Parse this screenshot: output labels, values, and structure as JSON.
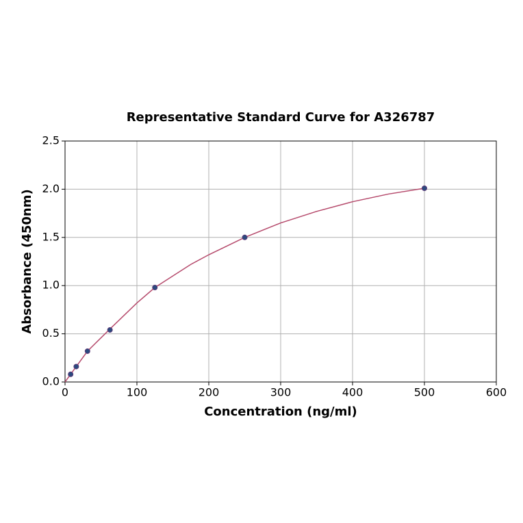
{
  "chart_data": {
    "type": "scatter",
    "title": "Representative Standard Curve for A326787",
    "x_label": "Concentration (ng/ml)",
    "y_label": "Absorbance (450nm)",
    "points": {
      "color": "#2b4a7e",
      "x": [
        7.8,
        15.6,
        31.25,
        62.5,
        125,
        250,
        500
      ],
      "values": [
        0.08,
        0.16,
        0.32,
        0.54,
        0.98,
        1.5,
        2.01
      ]
    },
    "curve": {
      "color": "#b5496b",
      "x": [
        0,
        7.8,
        15.6,
        31.25,
        62.5,
        100,
        125,
        175,
        200,
        250,
        300,
        350,
        400,
        450,
        500
      ],
      "values": [
        0.0,
        0.08,
        0.16,
        0.32,
        0.55,
        0.82,
        0.98,
        1.22,
        1.32,
        1.5,
        1.65,
        1.77,
        1.87,
        1.95,
        2.01
      ]
    },
    "xlim": [
      0,
      600
    ],
    "xticks": [
      0,
      100,
      200,
      300,
      400,
      500,
      600
    ],
    "ylim": [
      0,
      2.5
    ],
    "yticks": [
      {
        "value": 0,
        "label": "0.0"
      },
      {
        "value": 0.5,
        "label": "0.5"
      },
      {
        "value": 1,
        "label": "1.0"
      },
      {
        "value": 1.5,
        "label": "1.5"
      },
      {
        "value": 2,
        "label": "2.0"
      },
      {
        "value": 2.5,
        "label": "2.5"
      }
    ],
    "grid": true
  }
}
